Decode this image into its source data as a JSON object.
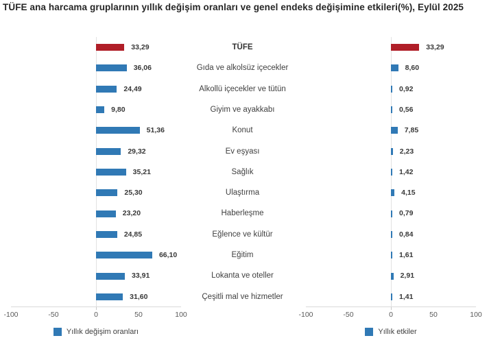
{
  "title": "TÜFE ana harcama gruplarının yıllık değişim oranları ve genel endeks değişimine etkileri(%), Eylül 2025",
  "chart_data": {
    "type": "bar",
    "orientation": "horizontal",
    "categories": [
      "TÜFE",
      "Gıda ve alkolsüz içecekler",
      "Alkollü içecekler ve tütün",
      "Giyim ve ayakkabı",
      "Konut",
      "Ev eşyası",
      "Sağlık",
      "Ulaştırma",
      "Haberleşme",
      "Eğlence ve kültür",
      "Eğitim",
      "Lokanta ve oteller",
      "Çeşitli mal ve hizmetler"
    ],
    "highlight_category": "TÜFE",
    "series": [
      {
        "name": "Yıllık değişim oranları",
        "values": [
          33.29,
          36.06,
          24.49,
          9.8,
          51.36,
          29.32,
          35.21,
          25.3,
          23.2,
          24.85,
          66.1,
          33.91,
          31.6
        ],
        "labels": [
          "33,29",
          "36,06",
          "24,49",
          "9,80",
          "51,36",
          "29,32",
          "35,21",
          "25,30",
          "23,20",
          "24,85",
          "66,10",
          "33,91",
          "31,60"
        ]
      },
      {
        "name": "Yıllık etkiler",
        "values": [
          33.29,
          8.6,
          0.92,
          0.56,
          7.85,
          2.23,
          1.42,
          4.15,
          0.79,
          0.84,
          1.61,
          2.91,
          1.41
        ],
        "labels": [
          "33,29",
          "8,60",
          "0,92",
          "0,56",
          "7,85",
          "2,23",
          "1,42",
          "4,15",
          "0,79",
          "0,84",
          "1,61",
          "2,91",
          "1,41"
        ]
      }
    ],
    "xlim": [
      -100,
      100
    ],
    "x_ticks": [
      "-100",
      "-50",
      "0",
      "50",
      "100"
    ],
    "grid": "zero-line-only",
    "legend_position": "bottom",
    "colors": {
      "bar": "#3079B5",
      "highlight_bar": "#B01E28",
      "zero_line": "#E2E2E2",
      "axis_line": "#D9D9D9"
    },
    "legends": [
      {
        "label": "Yıllık değişim oranları",
        "color": "#3079B5"
      },
      {
        "label": "Yıllık etkiler",
        "color": "#3079B5"
      }
    ]
  }
}
